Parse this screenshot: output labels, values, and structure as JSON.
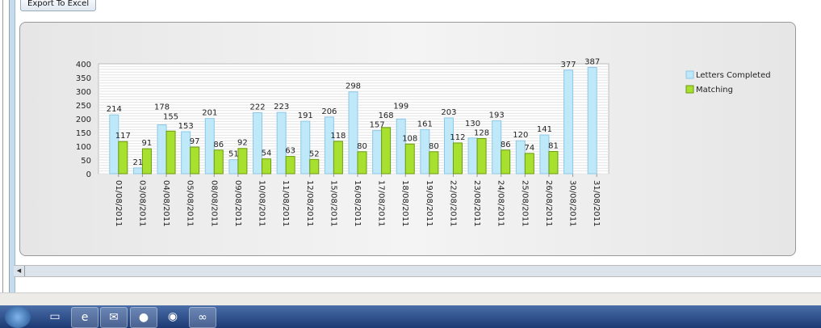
{
  "toolbar": {
    "export_label": "Export To Excel"
  },
  "taskbar": {
    "icons": [
      "windows-start",
      "file-explorer",
      "internet-explorer",
      "outlook",
      "app-green",
      "firefox",
      "app-remote"
    ]
  },
  "chart_data": {
    "type": "bar",
    "title": "",
    "xlabel": "",
    "ylabel": "",
    "ylim": [
      0,
      400
    ],
    "yticks": [
      0,
      50,
      100,
      150,
      200,
      250,
      300,
      350,
      400
    ],
    "grid": true,
    "legend": "right",
    "categories": [
      "01/08/2011",
      "03/08/2011",
      "04/08/2011",
      "05/08/2011",
      "08/08/2011",
      "09/08/2011",
      "10/08/2011",
      "11/08/2011",
      "12/08/2011",
      "15/08/2011",
      "16/08/2011",
      "17/08/2011",
      "18/08/2011",
      "19/08/2011",
      "22/08/2011",
      "23/08/2011",
      "24/08/2011",
      "25/08/2011",
      "26/08/2011",
      "30/08/2011",
      "31/08/2011"
    ],
    "series": [
      {
        "name": "Letters Completed",
        "color": "#bfe8f8",
        "values": [
          214,
          21,
          178,
          153,
          201,
          51,
          222,
          223,
          191,
          206,
          298,
          157,
          199,
          161,
          203,
          130,
          193,
          120,
          141,
          377,
          387
        ]
      },
      {
        "name": "Matching",
        "color": "#a8e030",
        "values": [
          117,
          91,
          155,
          97,
          86,
          92,
          54,
          63,
          52,
          118,
          80,
          168,
          108,
          80,
          112,
          128,
          86,
          74,
          81,
          null,
          null
        ]
      }
    ]
  }
}
